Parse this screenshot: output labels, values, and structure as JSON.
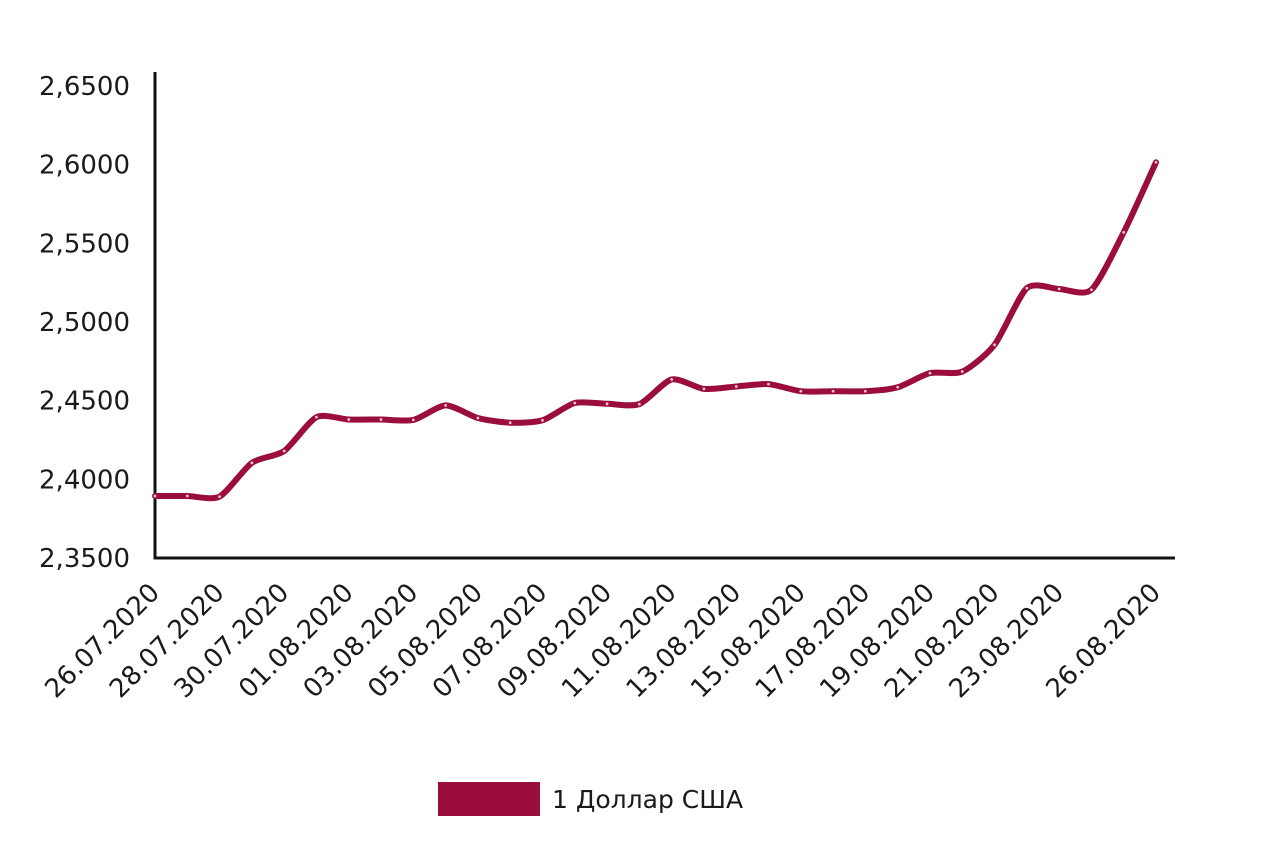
{
  "chart_data": {
    "type": "line",
    "title": "",
    "xlabel": "",
    "ylabel": "",
    "ylim": [
      2.35,
      2.65
    ],
    "yticks": [
      "2,3500",
      "2,4000",
      "2,4500",
      "2,5000",
      "2,5500",
      "2,6000",
      "2,6500"
    ],
    "ytick_values": [
      2.35,
      2.4,
      2.45,
      2.5,
      2.55,
      2.6,
      2.65
    ],
    "x": [
      "26.07.2020",
      "27.07.2020",
      "28.07.2020",
      "29.07.2020",
      "30.07.2020",
      "31.07.2020",
      "01.08.2020",
      "02.08.2020",
      "03.08.2020",
      "04.08.2020",
      "05.08.2020",
      "06.08.2020",
      "07.08.2020",
      "08.08.2020",
      "09.08.2020",
      "10.08.2020",
      "11.08.2020",
      "12.08.2020",
      "13.08.2020",
      "14.08.2020",
      "15.08.2020",
      "16.08.2020",
      "17.08.2020",
      "18.08.2020",
      "19.08.2020",
      "20.08.2020",
      "21.08.2020",
      "22.08.2020",
      "23.08.2020",
      "24.08.2020",
      "25.08.2020",
      "26.08.2020"
    ],
    "xtick_labels": [
      "26.07.2020",
      "28.07.2020",
      "30.07.2020",
      "01.08.2020",
      "03.08.2020",
      "05.08.2020",
      "07.08.2020",
      "09.08.2020",
      "11.08.2020",
      "13.08.2020",
      "15.08.2020",
      "17.08.2020",
      "19.08.2020",
      "21.08.2020",
      "23.08.2020",
      "26.08.2020"
    ],
    "series": [
      {
        "name": "1 Доллар США",
        "color": "#9b0d3c",
        "values": [
          2.3894,
          2.3894,
          2.389,
          2.4105,
          2.418,
          2.4395,
          2.438,
          2.438,
          2.4378,
          2.447,
          2.439,
          2.436,
          2.4375,
          2.4485,
          2.448,
          2.4478,
          2.4635,
          2.4575,
          2.459,
          2.4605,
          2.456,
          2.456,
          2.456,
          2.4585,
          2.4675,
          2.4685,
          2.4855,
          2.5215,
          2.521,
          2.5205,
          2.557,
          2.6015
        ]
      }
    ],
    "grid": false,
    "legend_position": "bottom"
  },
  "colors": {
    "series": "#9b0d3c",
    "axis": "#111111",
    "marker": "#e8c7d3"
  }
}
